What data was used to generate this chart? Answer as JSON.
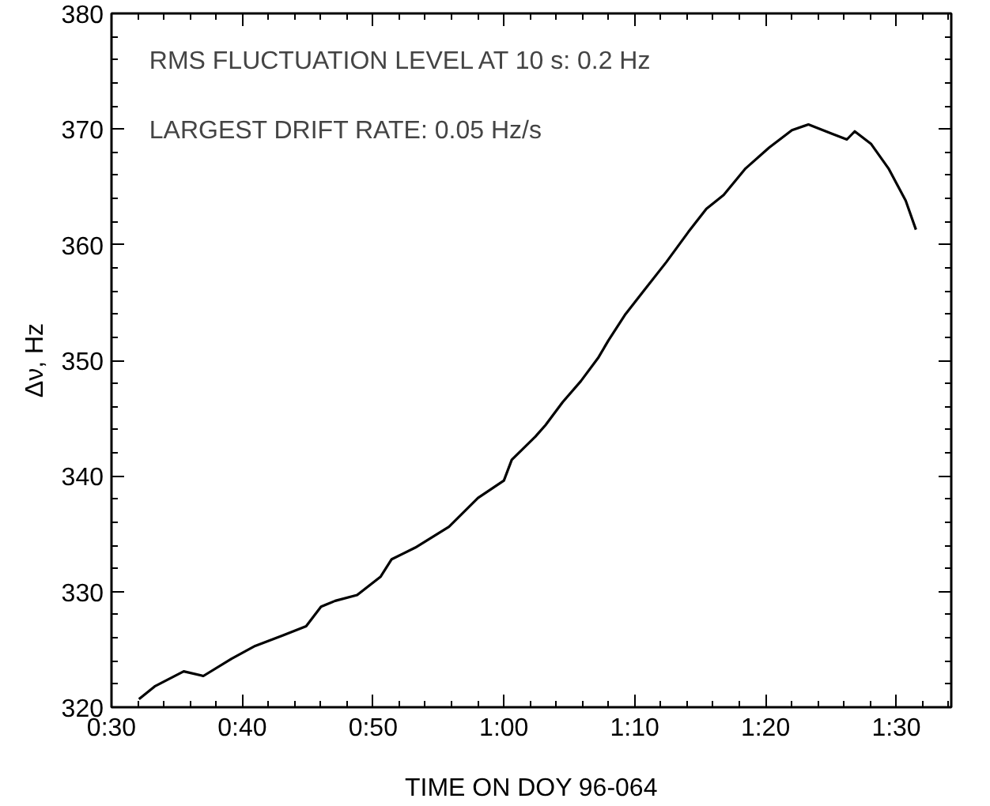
{
  "chart_data": {
    "type": "line",
    "xlabel": "TIME ON DOY 96-064",
    "ylabel": "Δν, Hz",
    "annotations": [
      "RMS FLUCTUATION LEVEL AT 10 s:  0.2 Hz",
      "LARGEST DRIFT RATE:  0.05 Hz/s"
    ],
    "x": [
      0.535,
      0.555,
      0.592,
      0.617,
      0.653,
      0.683,
      0.718,
      0.748,
      0.767,
      0.785,
      0.813,
      0.843,
      0.857,
      0.887,
      0.93,
      0.967,
      1.0,
      1.01,
      1.04,
      1.053,
      1.075,
      1.098,
      1.12,
      1.133,
      1.155,
      1.178,
      1.207,
      1.235,
      1.258,
      1.28,
      1.308,
      1.338,
      1.367,
      1.388,
      1.418,
      1.437,
      1.447,
      1.468,
      1.49,
      1.512,
      1.525
    ],
    "series": [
      {
        "color": "#000000",
        "values": [
          320.7,
          321.8,
          323.1,
          322.7,
          324.2,
          325.3,
          326.2,
          327.0,
          328.7,
          329.2,
          329.7,
          331.3,
          332.8,
          333.8,
          335.6,
          338.1,
          339.6,
          341.4,
          343.4,
          344.4,
          346.4,
          348.2,
          350.2,
          351.7,
          354.0,
          356.0,
          358.5,
          361.1,
          363.1,
          364.3,
          366.6,
          368.4,
          369.9,
          370.4,
          369.6,
          369.1,
          369.8,
          368.7,
          366.6,
          363.8,
          361.3
        ]
      }
    ],
    "xlim": [
      0.5,
      1.57
    ],
    "ylim": [
      320,
      380
    ],
    "xticks": [
      {
        "value": 0.5,
        "label": "0:30"
      },
      {
        "value": 0.6667,
        "label": "0:40"
      },
      {
        "value": 0.8333,
        "label": "0:50"
      },
      {
        "value": 1,
        "label": "1:00"
      },
      {
        "value": 1.1667,
        "label": "1:10"
      },
      {
        "value": 1.3333,
        "label": "1:20"
      },
      {
        "value": 1.5,
        "label": "1:30"
      }
    ],
    "yticks": [
      320,
      330,
      340,
      350,
      360,
      370,
      380
    ],
    "grid": false,
    "marker": "none",
    "line_style": "solid"
  }
}
